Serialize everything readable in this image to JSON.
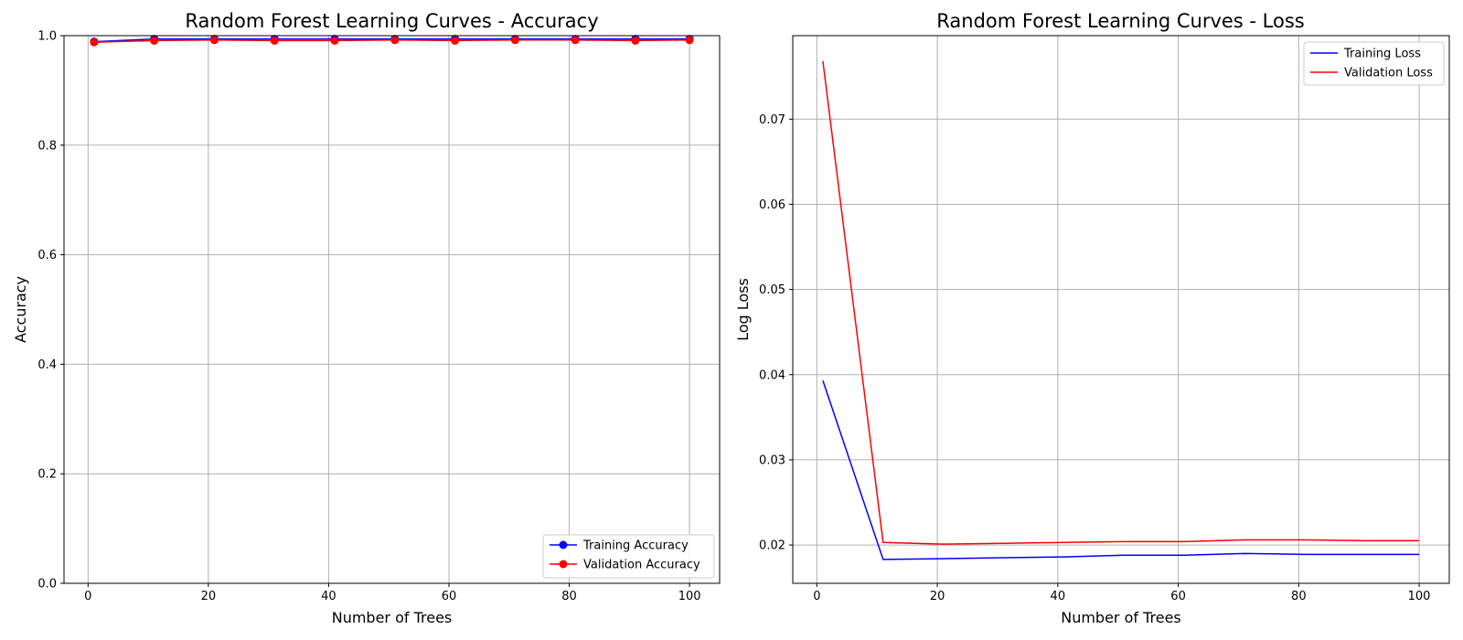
{
  "chart_data": [
    {
      "type": "line",
      "title": "Random Forest Learning Curves - Accuracy",
      "xlabel": "Number of Trees",
      "ylabel": "Accuracy",
      "xlim": [
        -4,
        105
      ],
      "ylim": [
        0,
        1.0
      ],
      "xticks": [
        0,
        20,
        40,
        60,
        80,
        100
      ],
      "yticks": [
        0.0,
        0.2,
        0.4,
        0.6,
        0.8,
        1.0
      ],
      "ytick_format": "1",
      "grid": true,
      "legend_position": "lower-right",
      "markers": true,
      "x": [
        1,
        11,
        21,
        31,
        41,
        51,
        61,
        71,
        81,
        91,
        100
      ],
      "series": [
        {
          "name": "Training Accuracy",
          "color": "#0000ff",
          "values": [
            0.989,
            0.994,
            0.994,
            0.994,
            0.994,
            0.994,
            0.994,
            0.994,
            0.994,
            0.994,
            0.994
          ]
        },
        {
          "name": "Validation Accuracy",
          "color": "#ff0000",
          "values": [
            0.988,
            0.991,
            0.992,
            0.991,
            0.991,
            0.992,
            0.991,
            0.992,
            0.992,
            0.991,
            0.992
          ]
        }
      ]
    },
    {
      "type": "line",
      "title": "Random Forest Learning Curves - Loss",
      "xlabel": "Number of Trees",
      "ylabel": "Log Loss",
      "xlim": [
        -4,
        105
      ],
      "ylim": [
        0.0155,
        0.0798
      ],
      "xticks": [
        0,
        20,
        40,
        60,
        80,
        100
      ],
      "yticks": [
        0.02,
        0.03,
        0.04,
        0.05,
        0.06,
        0.07
      ],
      "ytick_format": "2",
      "grid": true,
      "legend_position": "upper-right",
      "markers": false,
      "x": [
        1,
        11,
        21,
        31,
        41,
        51,
        61,
        71,
        81,
        91,
        100
      ],
      "series": [
        {
          "name": "Training Loss",
          "color": "#0000ff",
          "values": [
            0.0393,
            0.0183,
            0.0184,
            0.0185,
            0.0186,
            0.0188,
            0.0188,
            0.019,
            0.0189,
            0.0189,
            0.0189
          ]
        },
        {
          "name": "Validation Loss",
          "color": "#ff0000",
          "values": [
            0.0768,
            0.0203,
            0.0201,
            0.0202,
            0.0203,
            0.0204,
            0.0204,
            0.0206,
            0.0206,
            0.0205,
            0.0205
          ]
        }
      ]
    }
  ]
}
